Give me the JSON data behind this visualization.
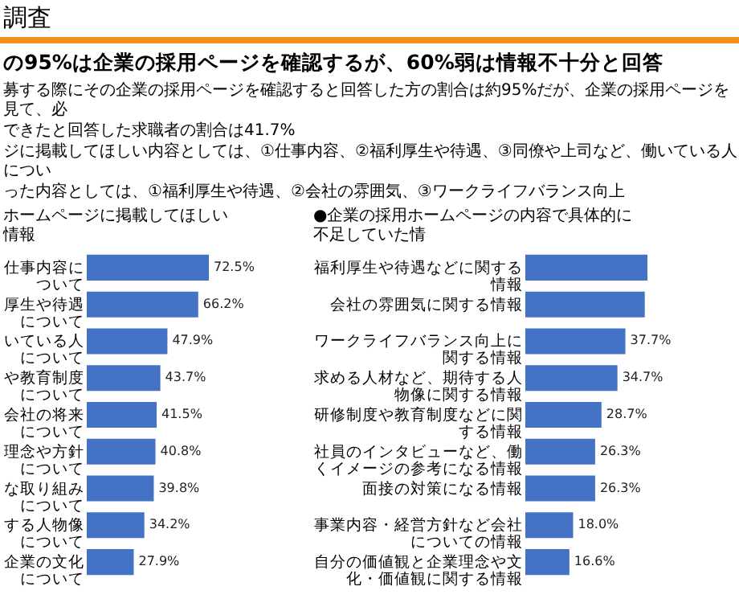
{
  "chart_data": [
    {
      "type": "other",
      "title": "調査",
      "subtitle": "の95%は企業の採用ページを確認するが、60%弱は情報不十分と回答",
      "annotations": [
        "募する際にその企業の採用ページを確認すると回答した方の割合は約95%だが、企業の採用ページを見て、必",
        "できたと回答した求職者の割合は41.7%",
        "ジに掲載してほしい内容としては、①仕事内容、②福利厚生や待遇、③同僚や上司など、働いている人につい",
        "った内容としては、①福利厚生や待遇、②会社の雰囲気、③ワークライフバランス向上"
      ]
    },
    {
      "type": "bar",
      "orientation": "horizontal",
      "title": "ホームページに掲載してほしい情報",
      "color": "#4472c4",
      "categories": [
        "仕事内容について",
        "厚生や待遇について",
        "いている人について",
        "や教育制度について",
        "会社の将来について",
        "理念や方針について",
        "な取り組みについて",
        "する人物像について",
        "企業の文化について"
      ],
      "values": [
        72.5,
        66.2,
        47.9,
        43.7,
        41.5,
        40.8,
        39.8,
        34.2,
        27.9
      ],
      "value_labels": [
        "72.5%",
        "66.2%",
        "47.9%",
        "43.7%",
        "41.5%",
        "40.8%",
        "39.8%",
        "34.2%",
        "27.9%"
      ]
    },
    {
      "type": "bar",
      "orientation": "horizontal",
      "title": "●企業の採用ホームページの内容で具体的に不足していた情",
      "color": "#4472c4",
      "categories": [
        "福利厚生や待遇などに関する情報",
        "会社の雰囲気に関する情報",
        "ワークライフバランス向上に関する情報",
        "求める人材など、期待する人物像に関する情報",
        "研修制度や教育制度などに関する情報",
        "社員のインタビューなど、働くイメージの参考になる情報",
        "面接の対策になる情報",
        "事業内容・経営方針など会社についての情報",
        "自分の価値観と企業理念や文化・価値観に関する情報"
      ],
      "values": [
        46,
        45,
        37.7,
        34.7,
        28.7,
        26.3,
        26.3,
        18.0,
        16.6
      ],
      "value_labels": [
        null,
        null,
        "37.7%",
        "34.7%",
        "28.7%",
        "26.3%",
        "26.3%",
        "18.0%",
        "16.6%"
      ]
    }
  ]
}
